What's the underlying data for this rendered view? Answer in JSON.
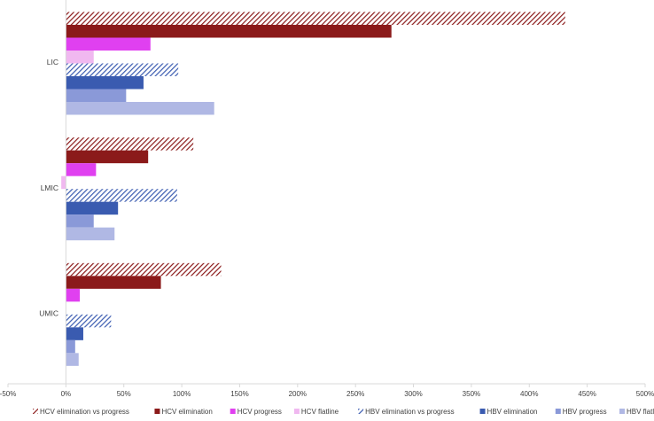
{
  "chart_data": {
    "type": "bar",
    "orientation": "horizontal",
    "title": "",
    "xlabel": "",
    "ylabel": "",
    "xlim": [
      -0.5,
      5.0
    ],
    "x_ticks": [
      -0.5,
      0,
      0.5,
      1.0,
      1.5,
      2.0,
      2.5,
      3.0,
      3.5,
      4.0,
      4.5,
      5.0
    ],
    "x_tick_labels": [
      "-50%",
      "0%",
      "50%",
      "100%",
      "150%",
      "200%",
      "250%",
      "300%",
      "350%",
      "400%",
      "450%",
      "500%"
    ],
    "categories": [
      "LIC",
      "LMIC",
      "UMIC"
    ],
    "grid": false,
    "legend_position": "bottom",
    "series": [
      {
        "name": "HCV elimination vs progress",
        "values": [
          4.31,
          1.1,
          1.34
        ],
        "color": "#8B1A1A",
        "pattern": "hatch"
      },
      {
        "name": "HCV elimination",
        "values": [
          2.81,
          0.71,
          0.82
        ],
        "color": "#8B1A1A",
        "pattern": "solid"
      },
      {
        "name": "HCV progress",
        "values": [
          0.73,
          0.26,
          0.12
        ],
        "color": "#E040F0",
        "pattern": "solid"
      },
      {
        "name": "HCV flatline",
        "values": [
          0.24,
          -0.04,
          0.0
        ],
        "color": "#F0B8F0",
        "pattern": "solid"
      },
      {
        "name": "HBV elimination vs progress",
        "values": [
          0.97,
          0.96,
          0.39
        ],
        "color": "#3A5BB0",
        "pattern": "hatch"
      },
      {
        "name": "HBV elimination",
        "values": [
          0.67,
          0.45,
          0.15
        ],
        "color": "#3A5BB0",
        "pattern": "solid"
      },
      {
        "name": "HBV progress",
        "values": [
          0.52,
          0.24,
          0.08
        ],
        "color": "#8A99D8",
        "pattern": "solid"
      },
      {
        "name": "HBV flatline",
        "values": [
          1.28,
          0.42,
          0.11
        ],
        "color": "#B0B8E4",
        "pattern": "solid"
      }
    ]
  }
}
